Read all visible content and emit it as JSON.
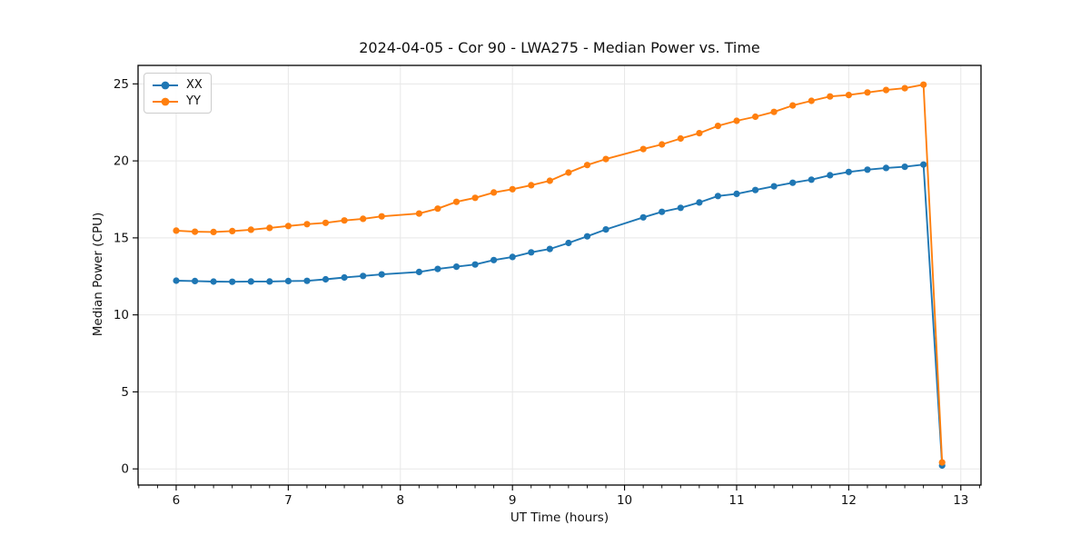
{
  "chart_data": {
    "type": "line",
    "title": "2024-04-05 - Cor 90 - LWA275 - Median Power vs. Time",
    "xlabel": "UT Time (hours)",
    "ylabel": "Median Power (CPU)",
    "xlim": [
      5.66,
      13.18
    ],
    "ylim": [
      -1.05,
      26.2
    ],
    "xticks": [
      6,
      7,
      8,
      9,
      10,
      11,
      12,
      13
    ],
    "yticks": [
      0,
      5,
      10,
      15,
      20,
      25
    ],
    "minor_xtick_interval": 0.1667,
    "grid": true,
    "legend_position": "upper left",
    "x": [
      6.0,
      6.167,
      6.333,
      6.5,
      6.667,
      6.833,
      7.0,
      7.167,
      7.333,
      7.5,
      7.667,
      7.833,
      8.167,
      8.333,
      8.5,
      8.667,
      8.833,
      9.0,
      9.167,
      9.333,
      9.5,
      9.667,
      9.833,
      10.167,
      10.333,
      10.5,
      10.667,
      10.833,
      11.0,
      11.167,
      11.333,
      11.5,
      11.667,
      11.833,
      12.0,
      12.167,
      12.333,
      12.5,
      12.667,
      12.833
    ],
    "series": [
      {
        "name": "XX",
        "color": "#1f77b4",
        "values": [
          12.22,
          12.2,
          12.16,
          12.15,
          12.17,
          12.17,
          12.2,
          12.21,
          12.31,
          12.43,
          12.53,
          12.63,
          12.79,
          12.98,
          13.13,
          13.27,
          13.56,
          13.76,
          14.06,
          14.28,
          14.67,
          15.1,
          15.55,
          16.33,
          16.69,
          16.95,
          17.3,
          17.72,
          17.86,
          18.11,
          18.35,
          18.58,
          18.78,
          19.07,
          19.28,
          19.43,
          19.54,
          19.62,
          19.76,
          0.22
        ]
      },
      {
        "name": "YY",
        "color": "#ff7f0e",
        "values": [
          15.47,
          15.4,
          15.38,
          15.44,
          15.53,
          15.65,
          15.77,
          15.89,
          15.98,
          16.13,
          16.24,
          16.4,
          16.58,
          16.9,
          17.34,
          17.6,
          17.95,
          18.16,
          18.42,
          18.71,
          19.24,
          19.73,
          20.12,
          20.77,
          21.07,
          21.45,
          21.8,
          22.27,
          22.6,
          22.87,
          23.18,
          23.6,
          23.9,
          24.18,
          24.28,
          24.44,
          24.6,
          24.72,
          24.95,
          0.42
        ]
      }
    ],
    "colors": {
      "grid": "#e7e7e7",
      "spine": "#000000",
      "tick_label": "#111111"
    }
  }
}
